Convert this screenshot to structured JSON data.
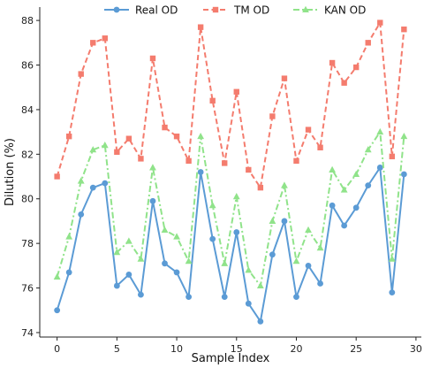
{
  "chart_data": {
    "type": "line",
    "title": "",
    "xlabel": "Sample Index",
    "ylabel": "Dilution (%)",
    "xlim": [
      -1.45,
      30.45
    ],
    "ylim": [
      73.8,
      88.6
    ],
    "xticks": [
      0,
      5,
      10,
      15,
      20,
      25,
      30
    ],
    "yticks": [
      74,
      76,
      78,
      80,
      82,
      84,
      86,
      88
    ],
    "grid": false,
    "legend_position": "top-center",
    "x": [
      0,
      1,
      2,
      3,
      4,
      5,
      6,
      7,
      8,
      9,
      10,
      11,
      12,
      13,
      14,
      15,
      16,
      17,
      18,
      19,
      20,
      21,
      22,
      23,
      24,
      25,
      26,
      27,
      28,
      29
    ],
    "series": [
      {
        "name": "Real OD",
        "color": "#5b9bd5",
        "linestyle": "solid",
        "marker": "circle",
        "values": [
          75.0,
          76.7,
          79.3,
          80.5,
          80.7,
          76.1,
          76.6,
          75.7,
          79.9,
          77.1,
          76.7,
          75.6,
          81.2,
          78.2,
          75.6,
          78.5,
          75.3,
          74.5,
          77.5,
          79.0,
          75.6,
          77.0,
          76.2,
          79.7,
          78.8,
          79.6,
          80.6,
          81.4,
          75.8,
          81.1
        ]
      },
      {
        "name": "TM OD",
        "color": "#f47c6e",
        "linestyle": "dashed",
        "marker": "square",
        "values": [
          81.0,
          82.8,
          85.6,
          87.0,
          87.2,
          82.1,
          82.7,
          81.8,
          86.3,
          83.2,
          82.8,
          81.7,
          87.7,
          84.4,
          81.6,
          84.8,
          81.3,
          80.5,
          83.7,
          85.4,
          81.7,
          83.1,
          82.3,
          86.1,
          85.2,
          85.9,
          87.0,
          87.9,
          81.9,
          87.6
        ]
      },
      {
        "name": "KAN OD",
        "color": "#90e38a",
        "linestyle": "dashdot",
        "marker": "triangle",
        "values": [
          76.5,
          78.3,
          80.8,
          82.2,
          82.4,
          77.6,
          78.1,
          77.3,
          81.4,
          78.6,
          78.3,
          77.2,
          82.8,
          79.7,
          77.1,
          80.1,
          76.8,
          76.1,
          79.0,
          80.6,
          77.2,
          78.6,
          77.8,
          81.3,
          80.4,
          81.1,
          82.2,
          83.0,
          77.3,
          82.8
        ]
      }
    ]
  }
}
